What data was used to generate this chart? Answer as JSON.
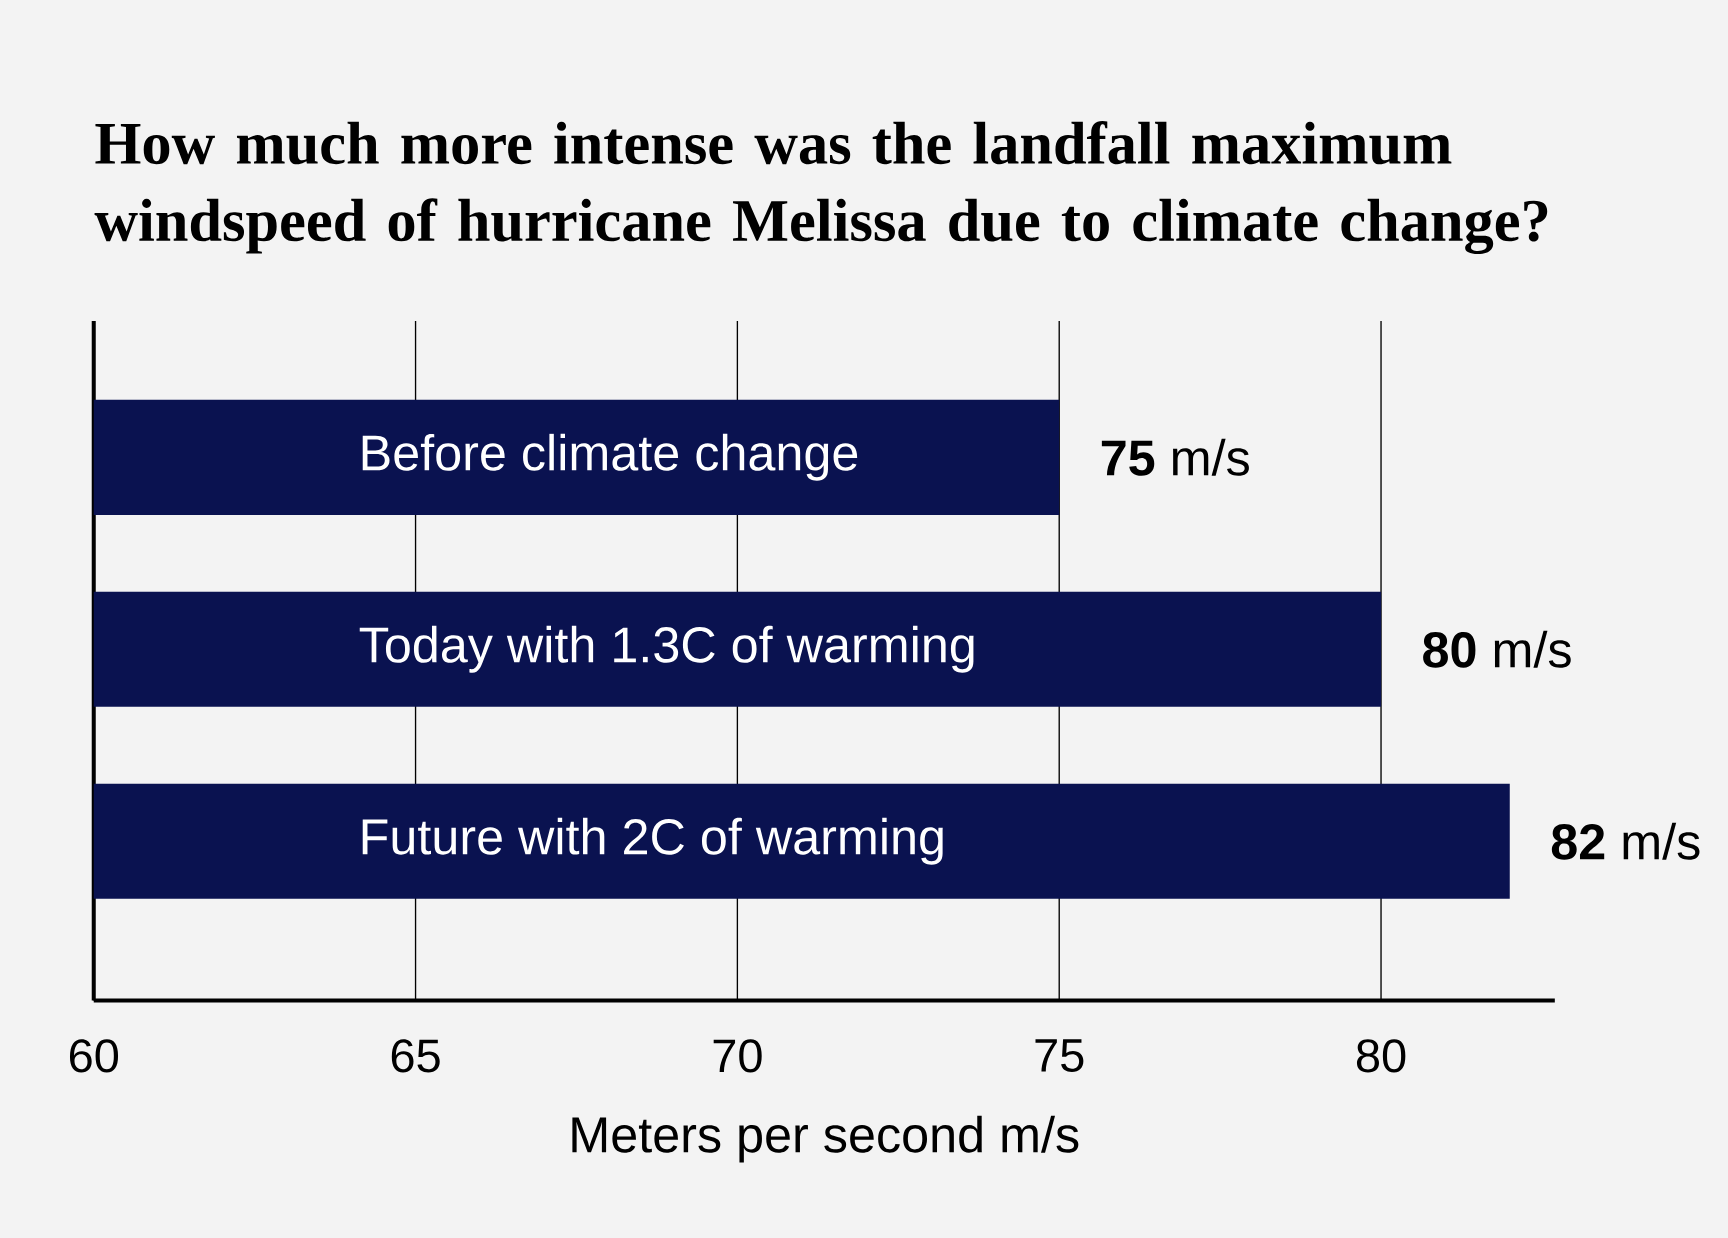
{
  "chart_data": {
    "type": "bar",
    "orientation": "horizontal",
    "title": "How much more intense was the landfall maximum windspeed of hurricane Melissa due to climate change?",
    "xlabel": "Meters per second m/s",
    "categories": [
      "Before climate change",
      "Today with 1.3C of warming",
      "Future with 2C of warming"
    ],
    "values": [
      75,
      80,
      82
    ],
    "color": "#0a1250",
    "value_labels": [
      "**75** m/s",
      "**80** m/s",
      "**82** m/s"
    ],
    "xlim": [
      60,
      82.7
    ],
    "xticks": [
      60,
      65,
      70,
      75,
      80
    ],
    "grid": "x"
  }
}
